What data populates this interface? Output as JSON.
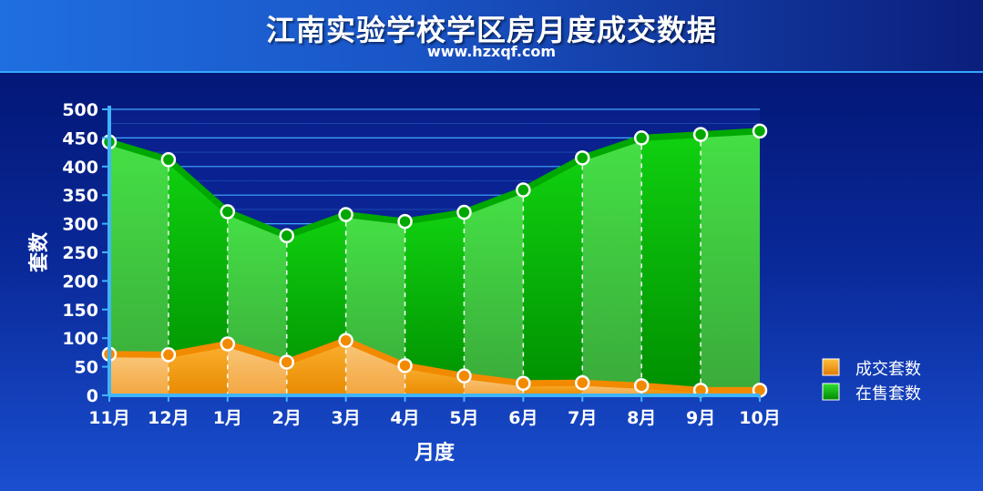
{
  "header": {
    "title": "江南实验学校学区房月度成交数据",
    "subtitle": "www.hzxqf.com"
  },
  "colors": {
    "sold": "#f28a00",
    "sold_fill": "#f7b15a",
    "listing": "#00a800",
    "listing_fill": "#2fd12f",
    "grid": "#3fa9ff"
  },
  "chart_data": {
    "type": "area",
    "categories": [
      "11月",
      "12月",
      "1月",
      "2月",
      "3月",
      "4月",
      "5月",
      "6月",
      "7月",
      "8月",
      "9月",
      "10月"
    ],
    "series": [
      {
        "name": "成交套数",
        "values": [
          72,
          71,
          90,
          58,
          96,
          52,
          34,
          21,
          22,
          17,
          9,
          9
        ]
      },
      {
        "name": "在售套数",
        "values": [
          443,
          412,
          321,
          279,
          316,
          304,
          320,
          359,
          415,
          450,
          456,
          462
        ]
      }
    ],
    "xlabel": "月度",
    "ylabel": "套数",
    "ylim": [
      0,
      500
    ],
    "yticks": [
      0,
      50,
      100,
      150,
      200,
      250,
      300,
      350,
      400,
      450,
      500
    ],
    "grid": true,
    "legend_position": "right"
  }
}
